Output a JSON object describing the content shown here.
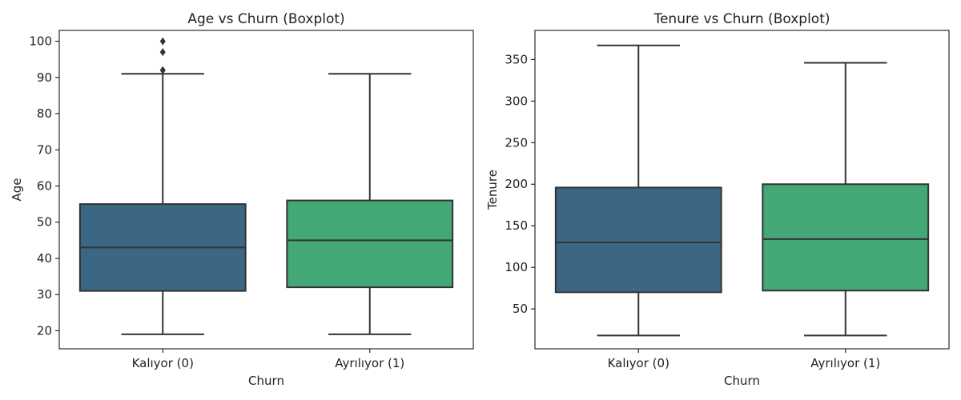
{
  "chart_data": [
    {
      "type": "boxplot",
      "title": "Age vs Churn (Boxplot)",
      "xlabel": "Churn",
      "ylabel": "Age",
      "categories": [
        "Kalıyor (0)",
        "Ayrılıyor (1)"
      ],
      "ylim": [
        15,
        103
      ],
      "yticks": [
        20,
        30,
        40,
        50,
        60,
        70,
        80,
        90,
        100
      ],
      "boxes": [
        {
          "category": "Kalıyor (0)",
          "color": "#3b6684",
          "whisker_low": 19,
          "q1": 31,
          "median": 43,
          "q3": 55,
          "whisker_high": 91,
          "outliers": [
            92,
            92,
            97,
            100
          ]
        },
        {
          "category": "Ayrılıyor (1)",
          "color": "#43a776",
          "whisker_low": 19,
          "q1": 32,
          "median": 45,
          "q3": 56,
          "whisker_high": 91,
          "outliers": []
        }
      ],
      "grid": false
    },
    {
      "type": "boxplot",
      "title": "Tenure vs Churn (Boxplot)",
      "xlabel": "Churn",
      "ylabel": "Tenure",
      "categories": [
        "Kalıyor (0)",
        "Ayrılıyor (1)"
      ],
      "ylim": [
        2,
        385
      ],
      "yticks": [
        50,
        100,
        150,
        200,
        250,
        300,
        350
      ],
      "boxes": [
        {
          "category": "Kalıyor (0)",
          "color": "#3b6684",
          "whisker_low": 18,
          "q1": 70,
          "median": 130,
          "q3": 196,
          "whisker_high": 367,
          "outliers": []
        },
        {
          "category": "Ayrılıyor (1)",
          "color": "#43a776",
          "whisker_low": 18,
          "q1": 72,
          "median": 134,
          "q3": 200,
          "whisker_high": 346,
          "outliers": []
        }
      ],
      "grid": false
    }
  ]
}
